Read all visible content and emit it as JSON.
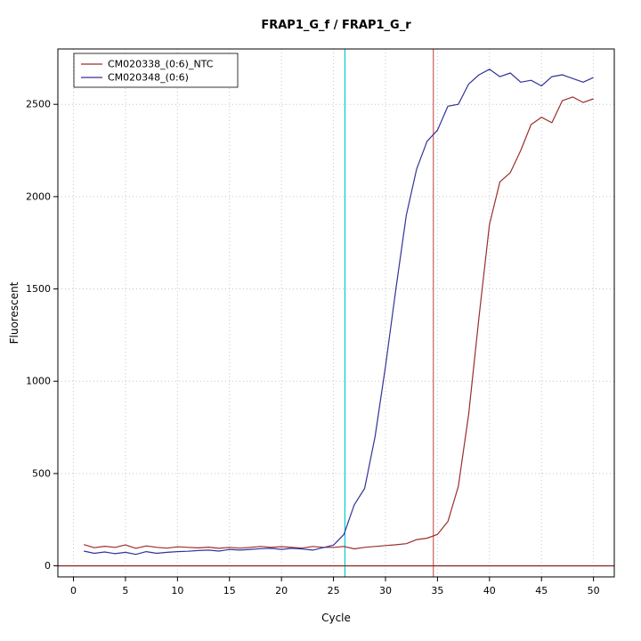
{
  "chart_data": {
    "type": "line",
    "title": "FRAP1_G_f / FRAP1_G_r",
    "xlabel": "Cycle",
    "ylabel": "Fluorescent",
    "xlim": [
      -1.5,
      52
    ],
    "ylim": [
      -60,
      2800
    ],
    "xticks": [
      0,
      5,
      10,
      15,
      20,
      25,
      30,
      35,
      40,
      45,
      50
    ],
    "yticks": [
      0,
      500,
      1000,
      1500,
      2000,
      2500
    ],
    "grid": true,
    "grid_color": "#c6c6c6",
    "legend_position": "top-left",
    "series": [
      {
        "name": "CM020338_(0:6)_NTC",
        "id": "cm020338-ntc",
        "color": "#9a2e2e",
        "x": [
          1,
          2,
          3,
          4,
          5,
          6,
          7,
          8,
          9,
          10,
          11,
          12,
          13,
          14,
          15,
          16,
          17,
          18,
          19,
          20,
          21,
          22,
          23,
          24,
          25,
          26,
          27,
          28,
          29,
          30,
          31,
          32,
          33,
          34,
          35,
          36,
          37,
          38,
          39,
          40,
          41,
          42,
          43,
          44,
          45,
          46,
          47,
          48,
          49,
          50
        ],
        "values": [
          115,
          98,
          106,
          100,
          113,
          95,
          108,
          100,
          96,
          103,
          100,
          97,
          101,
          95,
          100,
          96,
          100,
          105,
          100,
          104,
          100,
          96,
          105,
          100,
          100,
          105,
          92,
          100,
          105,
          110,
          114,
          120,
          142,
          150,
          170,
          240,
          430,
          820,
          1350,
          1850,
          2080,
          2130,
          2250,
          2390,
          2430,
          2400,
          2520,
          2540,
          2510,
          2530
        ]
      },
      {
        "name": "CM020348_(0:6)",
        "id": "cm020348",
        "color": "#333399",
        "x": [
          1,
          2,
          3,
          4,
          5,
          6,
          7,
          8,
          9,
          10,
          11,
          12,
          13,
          14,
          15,
          16,
          17,
          18,
          19,
          20,
          21,
          22,
          23,
          24,
          25,
          26,
          27,
          28,
          29,
          30,
          31,
          32,
          33,
          34,
          35,
          36,
          37,
          38,
          39,
          40,
          41,
          42,
          43,
          44,
          45,
          46,
          47,
          48,
          49,
          50
        ],
        "values": [
          80,
          68,
          75,
          66,
          73,
          62,
          77,
          68,
          73,
          77,
          79,
          83,
          85,
          80,
          89,
          85,
          89,
          93,
          95,
          89,
          95,
          91,
          85,
          98,
          112,
          170,
          330,
          420,
          700,
          1080,
          1500,
          1900,
          2150,
          2300,
          2360,
          2490,
          2500,
          2610,
          2660,
          2690,
          2650,
          2670,
          2620,
          2630,
          2600,
          2650,
          2660,
          2640,
          2620,
          2645
        ]
      }
    ],
    "vlines": [
      {
        "x": 26.1,
        "color": "#00cdcd",
        "name": "ct-threshold-line-cyan"
      },
      {
        "x": 34.6,
        "color": "#cd5c5c",
        "name": "ct-threshold-line-red"
      }
    ],
    "hlines": [
      {
        "y": 0,
        "color": "#8c2f2f",
        "name": "zero-baseline-line"
      }
    ],
    "legend": {
      "entries": [
        "CM020338_(0:6)_NTC",
        "CM020348_(0:6)"
      ]
    }
  }
}
